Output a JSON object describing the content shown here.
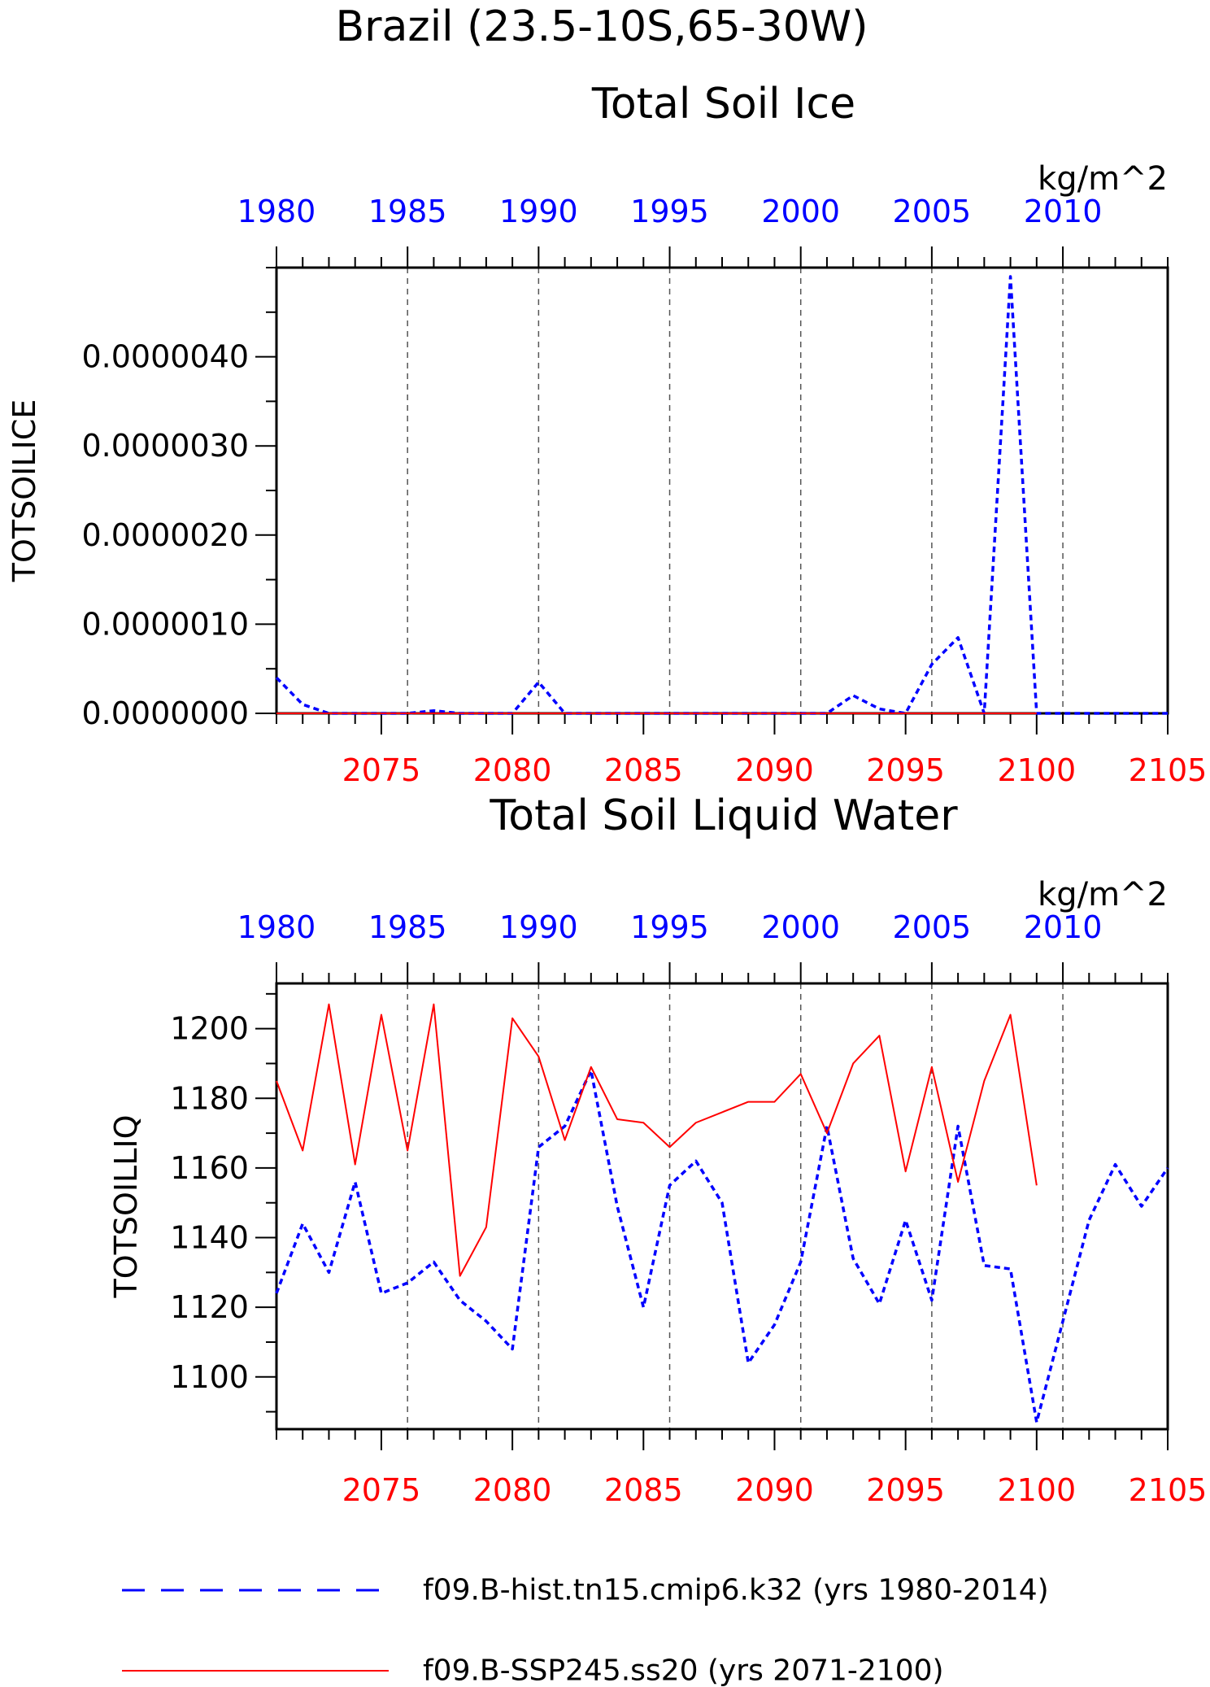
{
  "header": {
    "title": "Brazil (23.5-10S,65-30W)"
  },
  "colors": {
    "hist": "#0000ff",
    "ssp": "#ff0000",
    "axis": "#000000"
  },
  "legend": [
    {
      "label": "f09.B-hist.tn15.cmip6.k32 (yrs 1980-2014)",
      "style": "dashed",
      "color": "#0000ff"
    },
    {
      "label": "f09.B-SSP245.ss20 (yrs 2071-2100)",
      "style": "solid",
      "color": "#ff0000"
    }
  ],
  "chart_data": [
    {
      "type": "line",
      "title": "Total Soil Ice",
      "ylabel": "TOTSOILICE",
      "units": "kg/m^2",
      "grid": "dashed vertical lines every 5 years",
      "top_axis": {
        "label_years": [
          "1980",
          "1985",
          "1990",
          "1995",
          "2000",
          "2005",
          "2010"
        ],
        "range": [
          1980,
          2014
        ]
      },
      "bottom_axis": {
        "label_years": [
          "2075",
          "2080",
          "2085",
          "2090",
          "2095",
          "2100",
          "2105"
        ],
        "range": [
          2071,
          2105
        ]
      },
      "ylim": [
        0,
        5e-06
      ],
      "ytick_labels": [
        "0.0000000",
        "0.0000010",
        "0.0000020",
        "0.0000030",
        "0.0000040"
      ],
      "series": [
        {
          "name": "f09.B-hist.tn15.cmip6.k32 (yrs 1980-2014)",
          "axis": "top",
          "x": [
            1980,
            1981,
            1982,
            1983,
            1984,
            1985,
            1986,
            1987,
            1988,
            1989,
            1990,
            1991,
            1992,
            1993,
            1994,
            1995,
            1996,
            1997,
            1998,
            1999,
            2000,
            2001,
            2002,
            2003,
            2004,
            2005,
            2006,
            2007,
            2008,
            2009,
            2010,
            2011,
            2012,
            2013,
            2014
          ],
          "values": [
            4e-07,
            1e-07,
            0,
            0,
            0,
            0,
            3e-08,
            0,
            0,
            0,
            3.5e-07,
            0,
            0,
            0,
            0,
            0,
            0,
            0,
            0,
            0,
            0,
            0,
            2e-07,
            5e-08,
            0,
            5.5e-07,
            8.5e-07,
            0,
            4.9e-06,
            0,
            0,
            0,
            0,
            0,
            0
          ]
        },
        {
          "name": "f09.B-SSP245.ss20 (yrs 2071-2100)",
          "axis": "bottom",
          "x": [
            2071,
            2072,
            2073,
            2074,
            2075,
            2076,
            2077,
            2078,
            2079,
            2080,
            2081,
            2082,
            2083,
            2084,
            2085,
            2086,
            2087,
            2088,
            2089,
            2090,
            2091,
            2092,
            2093,
            2094,
            2095,
            2096,
            2097,
            2098,
            2099,
            2100
          ],
          "values": [
            0,
            0,
            0,
            0,
            0,
            0,
            0,
            0,
            0,
            0,
            0,
            0,
            0,
            0,
            0,
            0,
            0,
            0,
            0,
            0,
            0,
            0,
            0,
            0,
            0,
            0,
            0,
            0,
            0,
            0
          ]
        }
      ]
    },
    {
      "type": "line",
      "title": "Total Soil Liquid Water",
      "ylabel": "TOTSOILLIQ",
      "units": "kg/m^2",
      "grid": "dashed vertical lines every 5 years",
      "top_axis": {
        "label_years": [
          "1980",
          "1985",
          "1990",
          "1995",
          "2000",
          "2005",
          "2010"
        ],
        "range": [
          1980,
          2014
        ]
      },
      "bottom_axis": {
        "label_years": [
          "2075",
          "2080",
          "2085",
          "2090",
          "2095",
          "2100",
          "2105"
        ],
        "range": [
          2071,
          2105
        ]
      },
      "ylim": [
        1085,
        1213
      ],
      "ytick_labels": [
        "1100",
        "1120",
        "1140",
        "1160",
        "1180",
        "1200"
      ],
      "series": [
        {
          "name": "f09.B-hist.tn15.cmip6.k32 (yrs 1980-2014)",
          "axis": "top",
          "x": [
            1980,
            1981,
            1982,
            1983,
            1984,
            1985,
            1986,
            1987,
            1988,
            1989,
            1990,
            1991,
            1992,
            1993,
            1994,
            1995,
            1996,
            1997,
            1998,
            1999,
            2000,
            2001,
            2002,
            2003,
            2004,
            2005,
            2006,
            2007,
            2008,
            2009,
            2010,
            2011,
            2012,
            2013,
            2014
          ],
          "values": [
            1124,
            1144,
            1130,
            1156,
            1124,
            1127,
            1133,
            1122,
            1116,
            1108,
            1166,
            1172,
            1188,
            1149,
            1120,
            1155,
            1162,
            1150,
            1104,
            1115,
            1133,
            1172,
            1134,
            1121,
            1145,
            1122,
            1172,
            1132,
            1131,
            1087,
            1116,
            1145,
            1161,
            1149,
            1160
          ]
        },
        {
          "name": "f09.B-SSP245.ss20 (yrs 2071-2100)",
          "axis": "bottom",
          "x": [
            2071,
            2072,
            2073,
            2074,
            2075,
            2076,
            2077,
            2078,
            2079,
            2080,
            2081,
            2082,
            2083,
            2084,
            2085,
            2086,
            2087,
            2088,
            2089,
            2090,
            2091,
            2092,
            2093,
            2094,
            2095,
            2096,
            2097,
            2098,
            2099,
            2100
          ],
          "values": [
            1185,
            1165,
            1207,
            1161,
            1204,
            1165,
            1207,
            1129,
            1143,
            1203,
            1192,
            1168,
            1189,
            1174,
            1173,
            1166,
            1173,
            1176,
            1179,
            1179,
            1187,
            1170,
            1190,
            1198,
            1159,
            1189,
            1156,
            1185,
            1204,
            1155
          ]
        }
      ]
    }
  ]
}
